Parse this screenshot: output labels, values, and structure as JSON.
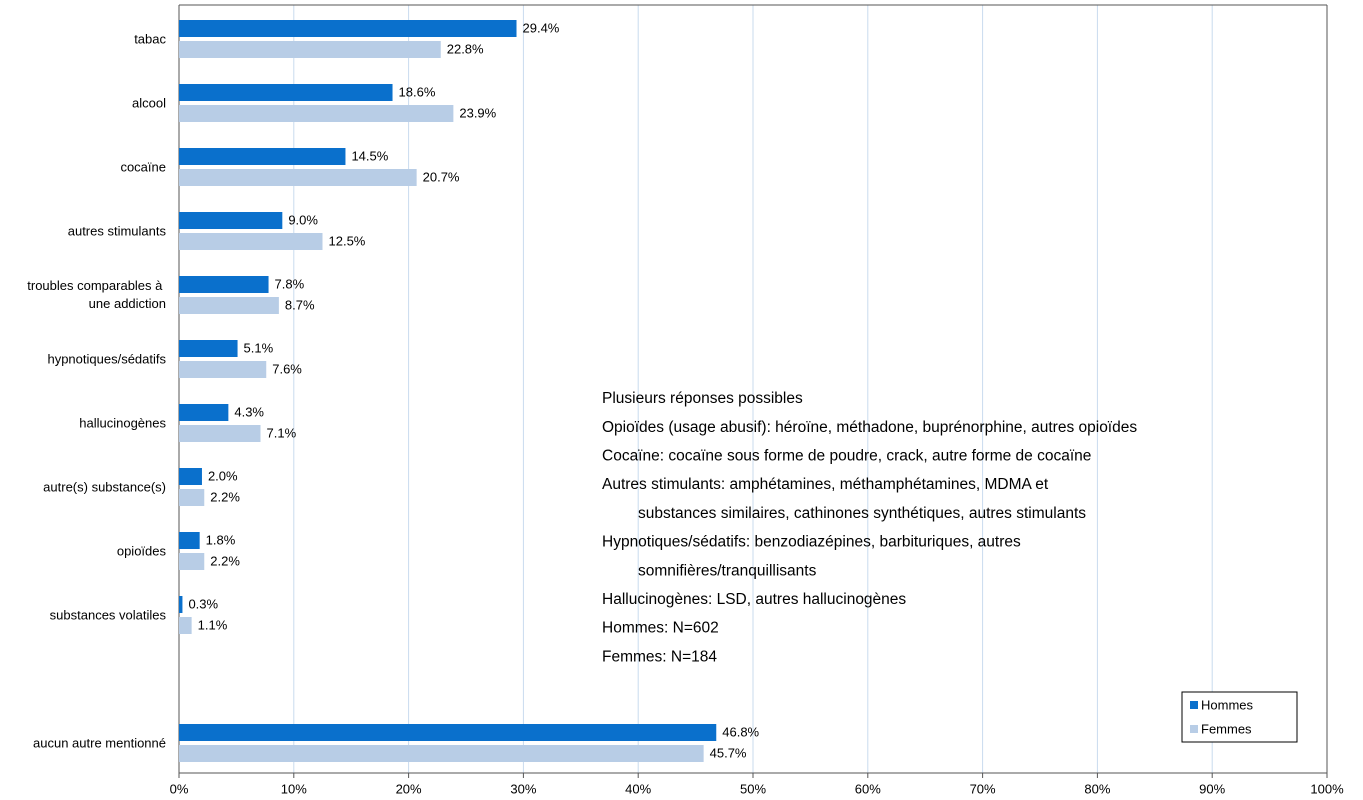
{
  "chart_data": {
    "type": "bar",
    "orientation": "horizontal",
    "categories": [
      "tabac",
      "alcool",
      "cocaïne",
      "autres stimulants",
      "troubles comparables à une addiction",
      "hypnotiques/sédatifs",
      "hallucinogènes",
      "autre(s) substance(s)",
      "opioïdes",
      "substances volatiles",
      null,
      "aucun autre mentionné"
    ],
    "series": [
      {
        "name": "Hommes",
        "color": "#0a70cc",
        "values": [
          29.4,
          18.6,
          14.5,
          9.0,
          7.8,
          5.1,
          4.3,
          2.0,
          1.8,
          0.3,
          null,
          46.8
        ],
        "value_labels": [
          "29.4%",
          "18.6%",
          "14.5%",
          "9.0%",
          "7.8%",
          "5.1%",
          "4.3%",
          "2.0%",
          "1.8%",
          "0.3%",
          null,
          "46.8%"
        ]
      },
      {
        "name": "Femmes",
        "color": "#b8cde6",
        "values": [
          22.8,
          23.9,
          20.7,
          12.5,
          8.7,
          7.6,
          7.1,
          2.2,
          2.2,
          1.1,
          null,
          45.7
        ],
        "value_labels": [
          "22.8%",
          "23.9%",
          "20.7%",
          "12.5%",
          "8.7%",
          "7.6%",
          "7.1%",
          "2.2%",
          "2.2%",
          "1.1%",
          null,
          "45.7%"
        ]
      }
    ],
    "xlim": [
      0,
      100
    ],
    "xticks": [
      {
        "value": 0,
        "label": "0%"
      },
      {
        "value": 10,
        "label": "10%"
      },
      {
        "value": 20,
        "label": "20%"
      },
      {
        "value": 30,
        "label": "30%"
      },
      {
        "value": 40,
        "label": "40%"
      },
      {
        "value": 50,
        "label": "50%"
      },
      {
        "value": 60,
        "label": "60%"
      },
      {
        "value": 70,
        "label": "70%"
      },
      {
        "value": 80,
        "label": "80%"
      },
      {
        "value": 90,
        "label": "90%"
      },
      {
        "value": 100,
        "label": "100%"
      }
    ],
    "grid": true,
    "legend": "lower right",
    "notes": [
      [
        "Plusieurs réponses possibles"
      ],
      [
        "Opioïdes (usage abusif): héroïne, méthadone, buprénorphine, autres opioïdes"
      ],
      [
        "Cocaïne: cocaïne sous forme de poudre, crack, autre forme de cocaïne"
      ],
      [
        "Autres stimulants: amphétamines, méthamphétamines, MDMA et",
        "substances similaires, cathinones synthétiques, autres stimulants"
      ],
      [
        "Hypnotiques/sédatifs: benzodiazépines, barbituriques, autres",
        "somnifières/tranquillisants"
      ],
      [
        "Hallucinogènes: LSD, autres hallucinogènes"
      ],
      [
        "Hommes: N=602"
      ],
      [
        "Femmes: N=184"
      ]
    ]
  }
}
